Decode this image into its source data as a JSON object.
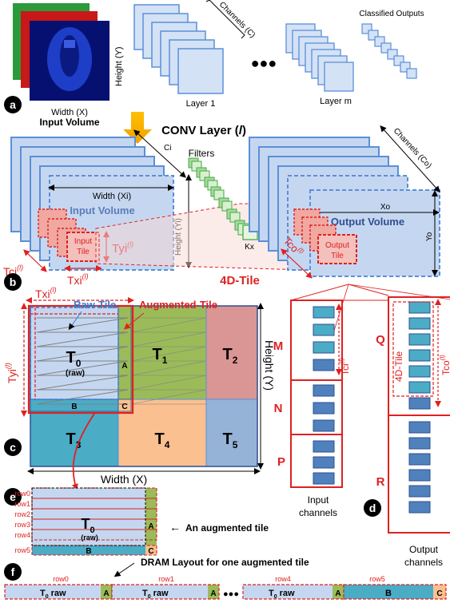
{
  "panel_labels": [
    "a",
    "b",
    "c",
    "d",
    "e",
    "f"
  ],
  "colors": {
    "blue_fill": "#c5d7f0",
    "blue_edge": "#5b8fd8",
    "dark_blue": "#2f4f8f",
    "red": "#e02020",
    "pink": "#f4c0bc",
    "green": "#9bbb59",
    "orange": "#fac090",
    "teal": "#4bacc6",
    "steel": "#95b3d7",
    "rose": "#d99694",
    "filter_green": "#d8f0d0"
  },
  "a": {
    "width_label": "Width (X)",
    "input_volume": "Input Volume",
    "height_label": "Height (Y)",
    "channels_label": "Channels (C)",
    "layer1": "Layer 1",
    "layerm": "Layer m",
    "classified": "Classified Outputs",
    "dots": "●●●"
  },
  "b": {
    "conv_title": "CONV Layer (",
    "conv_l": "l",
    "conv_close": ")",
    "filters": "Filters",
    "ci": "Ci",
    "width_xi": "Width (Xi)",
    "input_volume": "Input Volume",
    "height_yi": "Height (Yi)",
    "input_tile_1": "Input",
    "input_tile_2": "Tile",
    "tyi": "Tyi",
    "tci": "Tci",
    "txi": "Txi",
    "tile_sup": "(l)",
    "ky": "Ky",
    "kx": "Kx",
    "channels_co": "Channels (Co)",
    "xo": "Xo",
    "yo": "Yo",
    "output_volume": "Output Volume",
    "output_tile_1": "Output",
    "output_tile_2": "Tile",
    "tco": "Tco",
    "tile_4d": "4D-Tile"
  },
  "c": {
    "txi": "Txi",
    "tyi": "Tyi",
    "sup": "(l)",
    "raw_tile": "Raw-Tile",
    "augmented_tile": "Augmented-Tile",
    "T": "T",
    "sub0": "0",
    "raw": "(raw)",
    "tiles": [
      "1",
      "2",
      "3",
      "4",
      "5"
    ],
    "A": "A",
    "B": "B",
    "C": "C",
    "height_y": "Height (Y)",
    "width_x": "Width (X)"
  },
  "d": {
    "M": "M",
    "N": "N",
    "P": "P",
    "Q": "Q",
    "R": "R",
    "tci": "Tci",
    "tco": "Tco",
    "sup": "(l)",
    "tile_4d": "4D-Tile",
    "input_1": "Input",
    "input_2": "channels",
    "output_1": "Output",
    "output_2": "channels"
  },
  "e": {
    "rows": [
      "row0",
      "row1",
      "row2",
      "row3",
      "row4",
      "row5"
    ],
    "T": "T",
    "sub0": "0",
    "raw": "(raw)",
    "A": "A",
    "B": "B",
    "C": "C",
    "caption": "An augmented tile",
    "arrow": "←"
  },
  "f": {
    "title": "DRAM Layout for one augmented tile",
    "row_labels": [
      "row0",
      "row1",
      "row4",
      "row5"
    ],
    "t0raw": "raw",
    "T": "T",
    "sub0": "0",
    "A": "A",
    "B": "B",
    "C": "C",
    "dots": "●●●"
  }
}
